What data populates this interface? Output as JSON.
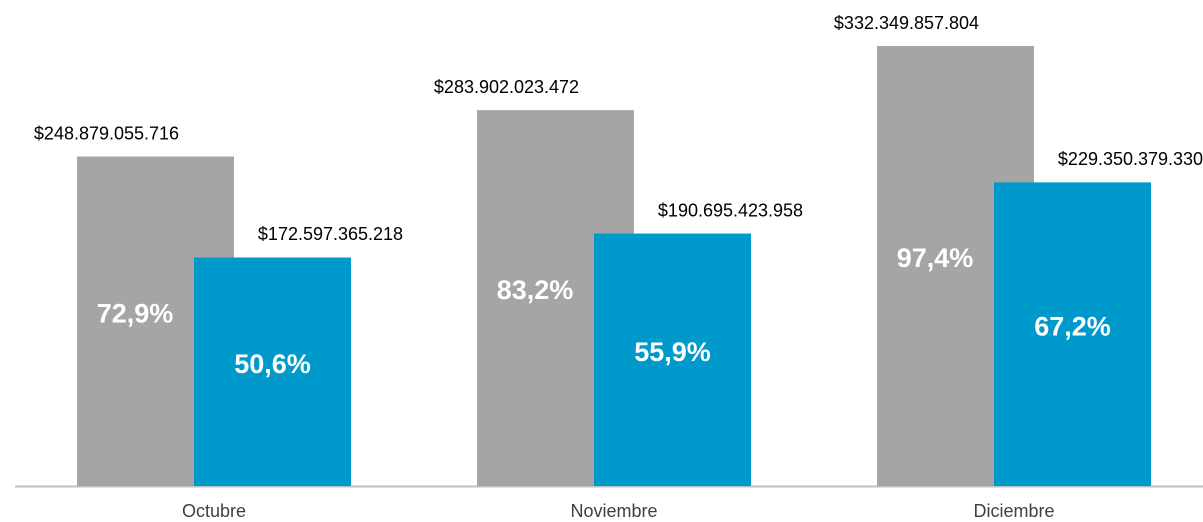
{
  "chart_data": {
    "type": "bar",
    "categories": [
      "Octubre",
      "Noviembre",
      "Diciembre"
    ],
    "series": [
      {
        "color": "#a5a5a5",
        "values": [
          248879055716,
          283902023472,
          332349857804
        ],
        "value_labels": [
          "$248.879.055.716",
          "$283.902.023.472",
          "$332.349.857.804"
        ],
        "shares": [
          72.9,
          83.2,
          97.4
        ],
        "share_labels": [
          "72,9%",
          "83,2%",
          "97,4%"
        ]
      },
      {
        "color": "#0099cc",
        "values": [
          172597365218,
          190695423958,
          229350379330
        ],
        "value_labels": [
          "$172.597.365.218",
          "$190.695.423.958",
          "$229.350.379.330"
        ],
        "shares": [
          50.6,
          55.9,
          67.2
        ],
        "share_labels": [
          "50,6%",
          "55,9%",
          "67,2%"
        ]
      }
    ]
  }
}
